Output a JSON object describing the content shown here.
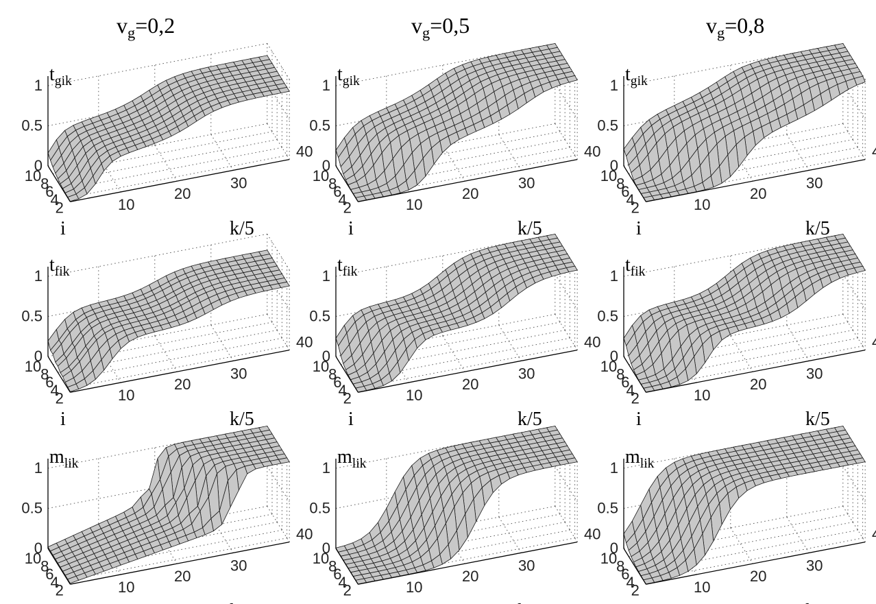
{
  "column_titles": [
    {
      "main": "v",
      "sub": "g",
      "rest": "=0,2"
    },
    {
      "main": "v",
      "sub": "g",
      "rest": "=0,5"
    },
    {
      "main": "v",
      "sub": "g",
      "rest": "=0,8"
    }
  ],
  "row_zlabels": [
    {
      "main": "t",
      "sub": "gik"
    },
    {
      "main": "t",
      "sub": "fik"
    },
    {
      "main": "m",
      "sub": "lik"
    }
  ],
  "axis_labels": {
    "i": "i",
    "k": "k/5"
  },
  "ticks": {
    "z": [
      "0",
      "0.5",
      "1"
    ],
    "i": [
      "10",
      "8",
      "6",
      "4",
      "2"
    ],
    "k": [
      "10",
      "20",
      "30",
      "40"
    ]
  },
  "colors": {
    "surface": "#c8c8c8",
    "mesh": "#1a1a1a",
    "grid": "#555555",
    "axis": "#000000"
  },
  "chart_data": [
    {
      "type": "surface",
      "row": "t_gik",
      "col": "v_g=0,2",
      "zlim": [
        0,
        1
      ],
      "i_range": [
        1,
        10
      ],
      "k_range": [
        1,
        40
      ],
      "transition_k_by_i": [
        6,
        5.5,
        5,
        4.5,
        4,
        3.5,
        3,
        2.5,
        2,
        1.5
      ],
      "plateau": [
        0.42,
        0.6,
        0.85
      ],
      "steep": 0.9
    },
    {
      "type": "surface",
      "row": "t_gik",
      "col": "v_g=0,5",
      "zlim": [
        0,
        1
      ],
      "i_range": [
        1,
        10
      ],
      "k_range": [
        1,
        40
      ],
      "transition_k_by_i": [
        14,
        12,
        10,
        8,
        6,
        5,
        4,
        3,
        2,
        1.5
      ],
      "plateau": [
        0.48,
        0.75,
        1.0
      ],
      "steep": 0.7
    },
    {
      "type": "surface",
      "row": "t_gik",
      "col": "v_g=0,8",
      "zlim": [
        0,
        1
      ],
      "i_range": [
        1,
        10
      ],
      "k_range": [
        1,
        40
      ],
      "transition_k_by_i": [
        18,
        15,
        12,
        10,
        8,
        6,
        4,
        3,
        2,
        1.5
      ],
      "plateau": [
        0.5,
        0.8,
        1.0
      ],
      "steep": 0.6
    },
    {
      "type": "surface",
      "row": "t_fik",
      "col": "v_g=0,2",
      "zlim": [
        0,
        1
      ],
      "i_range": [
        1,
        10
      ],
      "k_range": [
        1,
        40
      ],
      "transition_k_by_i": [
        8,
        7,
        6,
        5,
        5,
        4,
        4,
        3,
        3,
        2
      ],
      "plateau": [
        0.55,
        0.55,
        0.8
      ],
      "steep": 0.6
    },
    {
      "type": "surface",
      "row": "t_fik",
      "col": "v_g=0,5",
      "zlim": [
        0,
        1
      ],
      "i_range": [
        1,
        10
      ],
      "k_range": [
        1,
        40
      ],
      "transition_k_by_i": [
        10,
        9,
        8,
        7,
        6,
        5,
        4,
        3,
        2,
        1.5
      ],
      "plateau": [
        0.55,
        0.55,
        1.0
      ],
      "steep": 0.7
    },
    {
      "type": "surface",
      "row": "t_fik",
      "col": "v_g=0,8",
      "zlim": [
        0,
        1
      ],
      "i_range": [
        1,
        10
      ],
      "k_range": [
        1,
        40
      ],
      "transition_k_by_i": [
        12,
        10,
        9,
        8,
        6,
        5,
        4,
        3,
        2,
        1.5
      ],
      "plateau": [
        0.55,
        0.55,
        1.0
      ],
      "steep": 0.7
    },
    {
      "type": "surface",
      "row": "m_lik",
      "col": "v_g=0,2",
      "zlim": [
        0,
        1
      ],
      "i_range": [
        1,
        10
      ],
      "k_range": [
        1,
        40
      ],
      "transition_k_by_i": [
        30,
        28,
        26,
        25,
        24,
        23,
        22,
        21,
        20,
        19
      ],
      "plateau": [
        0.0,
        0.35,
        1.0
      ],
      "steep": 1.2
    },
    {
      "type": "surface",
      "row": "m_lik",
      "col": "v_g=0,5",
      "zlim": [
        0,
        1
      ],
      "i_range": [
        1,
        10
      ],
      "k_range": [
        1,
        40
      ],
      "transition_k_by_i": [
        22,
        20,
        18,
        17,
        16,
        15,
        14,
        13,
        12,
        11
      ],
      "plateau": [
        0.0,
        0.0,
        1.0
      ],
      "steep": 0.5
    },
    {
      "type": "surface",
      "row": "m_lik",
      "col": "v_g=0,8",
      "zlim": [
        0,
        1
      ],
      "i_range": [
        1,
        10
      ],
      "k_range": [
        1,
        40
      ],
      "transition_k_by_i": [
        14,
        12,
        11,
        10,
        9,
        8,
        7,
        6,
        5,
        4
      ],
      "plateau": [
        0.0,
        0.0,
        1.0
      ],
      "steep": 0.5
    }
  ]
}
